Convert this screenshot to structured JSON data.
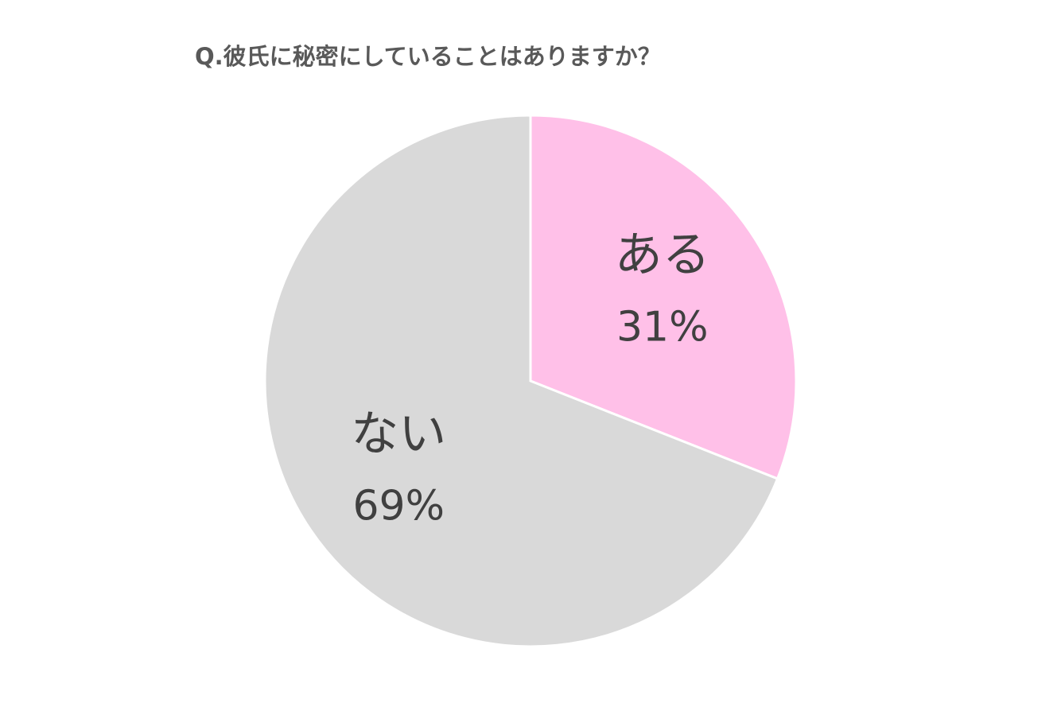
{
  "chart_data": {
    "type": "pie",
    "title": "Q.彼氏に秘密にしていることはありますか？",
    "categories": [
      "ある",
      "ない"
    ],
    "values": [
      31,
      69
    ],
    "value_labels": [
      "31%",
      "69%"
    ],
    "colors": [
      "#ffc0e8",
      "#d9d9d9"
    ]
  }
}
